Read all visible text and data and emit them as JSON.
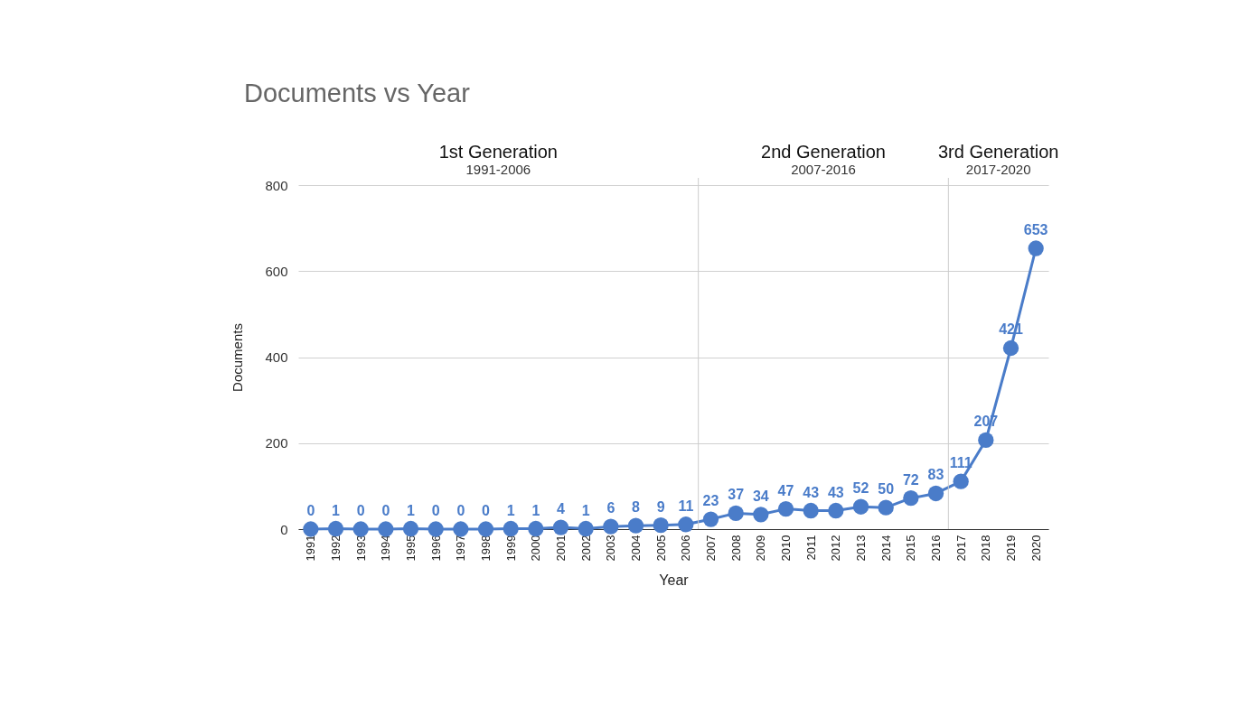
{
  "chart_data": {
    "type": "line",
    "title": "Documents vs Year",
    "xlabel": "Year",
    "ylabel": "Documents",
    "x": [
      1991,
      1992,
      1993,
      1994,
      1995,
      1996,
      1997,
      1998,
      1999,
      2000,
      2001,
      2002,
      2003,
      2004,
      2005,
      2006,
      2007,
      2008,
      2009,
      2010,
      2011,
      2012,
      2013,
      2014,
      2015,
      2016,
      2017,
      2018,
      2019,
      2020
    ],
    "series": [
      {
        "color": "#4a7cc9",
        "values": [
          0,
          1,
          0,
          0,
          1,
          0,
          0,
          0,
          1,
          1,
          4,
          1,
          6,
          8,
          9,
          11,
          23,
          37,
          34,
          47,
          43,
          43,
          52,
          50,
          72,
          83,
          111,
          207,
          421,
          653
        ]
      }
    ],
    "xlim": [
      1990.5,
      2020.5
    ],
    "xticks": [
      1991,
      1992,
      1993,
      1994,
      1995,
      1996,
      1997,
      1998,
      1999,
      2000,
      2001,
      2002,
      2003,
      2004,
      2005,
      2006,
      2007,
      2008,
      2009,
      2010,
      2011,
      2012,
      2013,
      2014,
      2015,
      2016,
      2017,
      2018,
      2019,
      2020
    ],
    "ylim": [
      0,
      800
    ],
    "yticks": [
      0,
      200,
      400,
      600,
      800
    ],
    "grid": "y",
    "marker": "circle",
    "data_labels": true,
    "ref_lines": [
      {
        "axis": "x",
        "value": 2006.5,
        "color": "#cccccc"
      },
      {
        "axis": "x",
        "value": 2016.5,
        "color": "#cccccc"
      }
    ],
    "annotations": [
      "1st Generation",
      "1991-2006",
      "2nd Generation",
      "2007-2016",
      "3rd Generation",
      "2017-2020"
    ]
  }
}
